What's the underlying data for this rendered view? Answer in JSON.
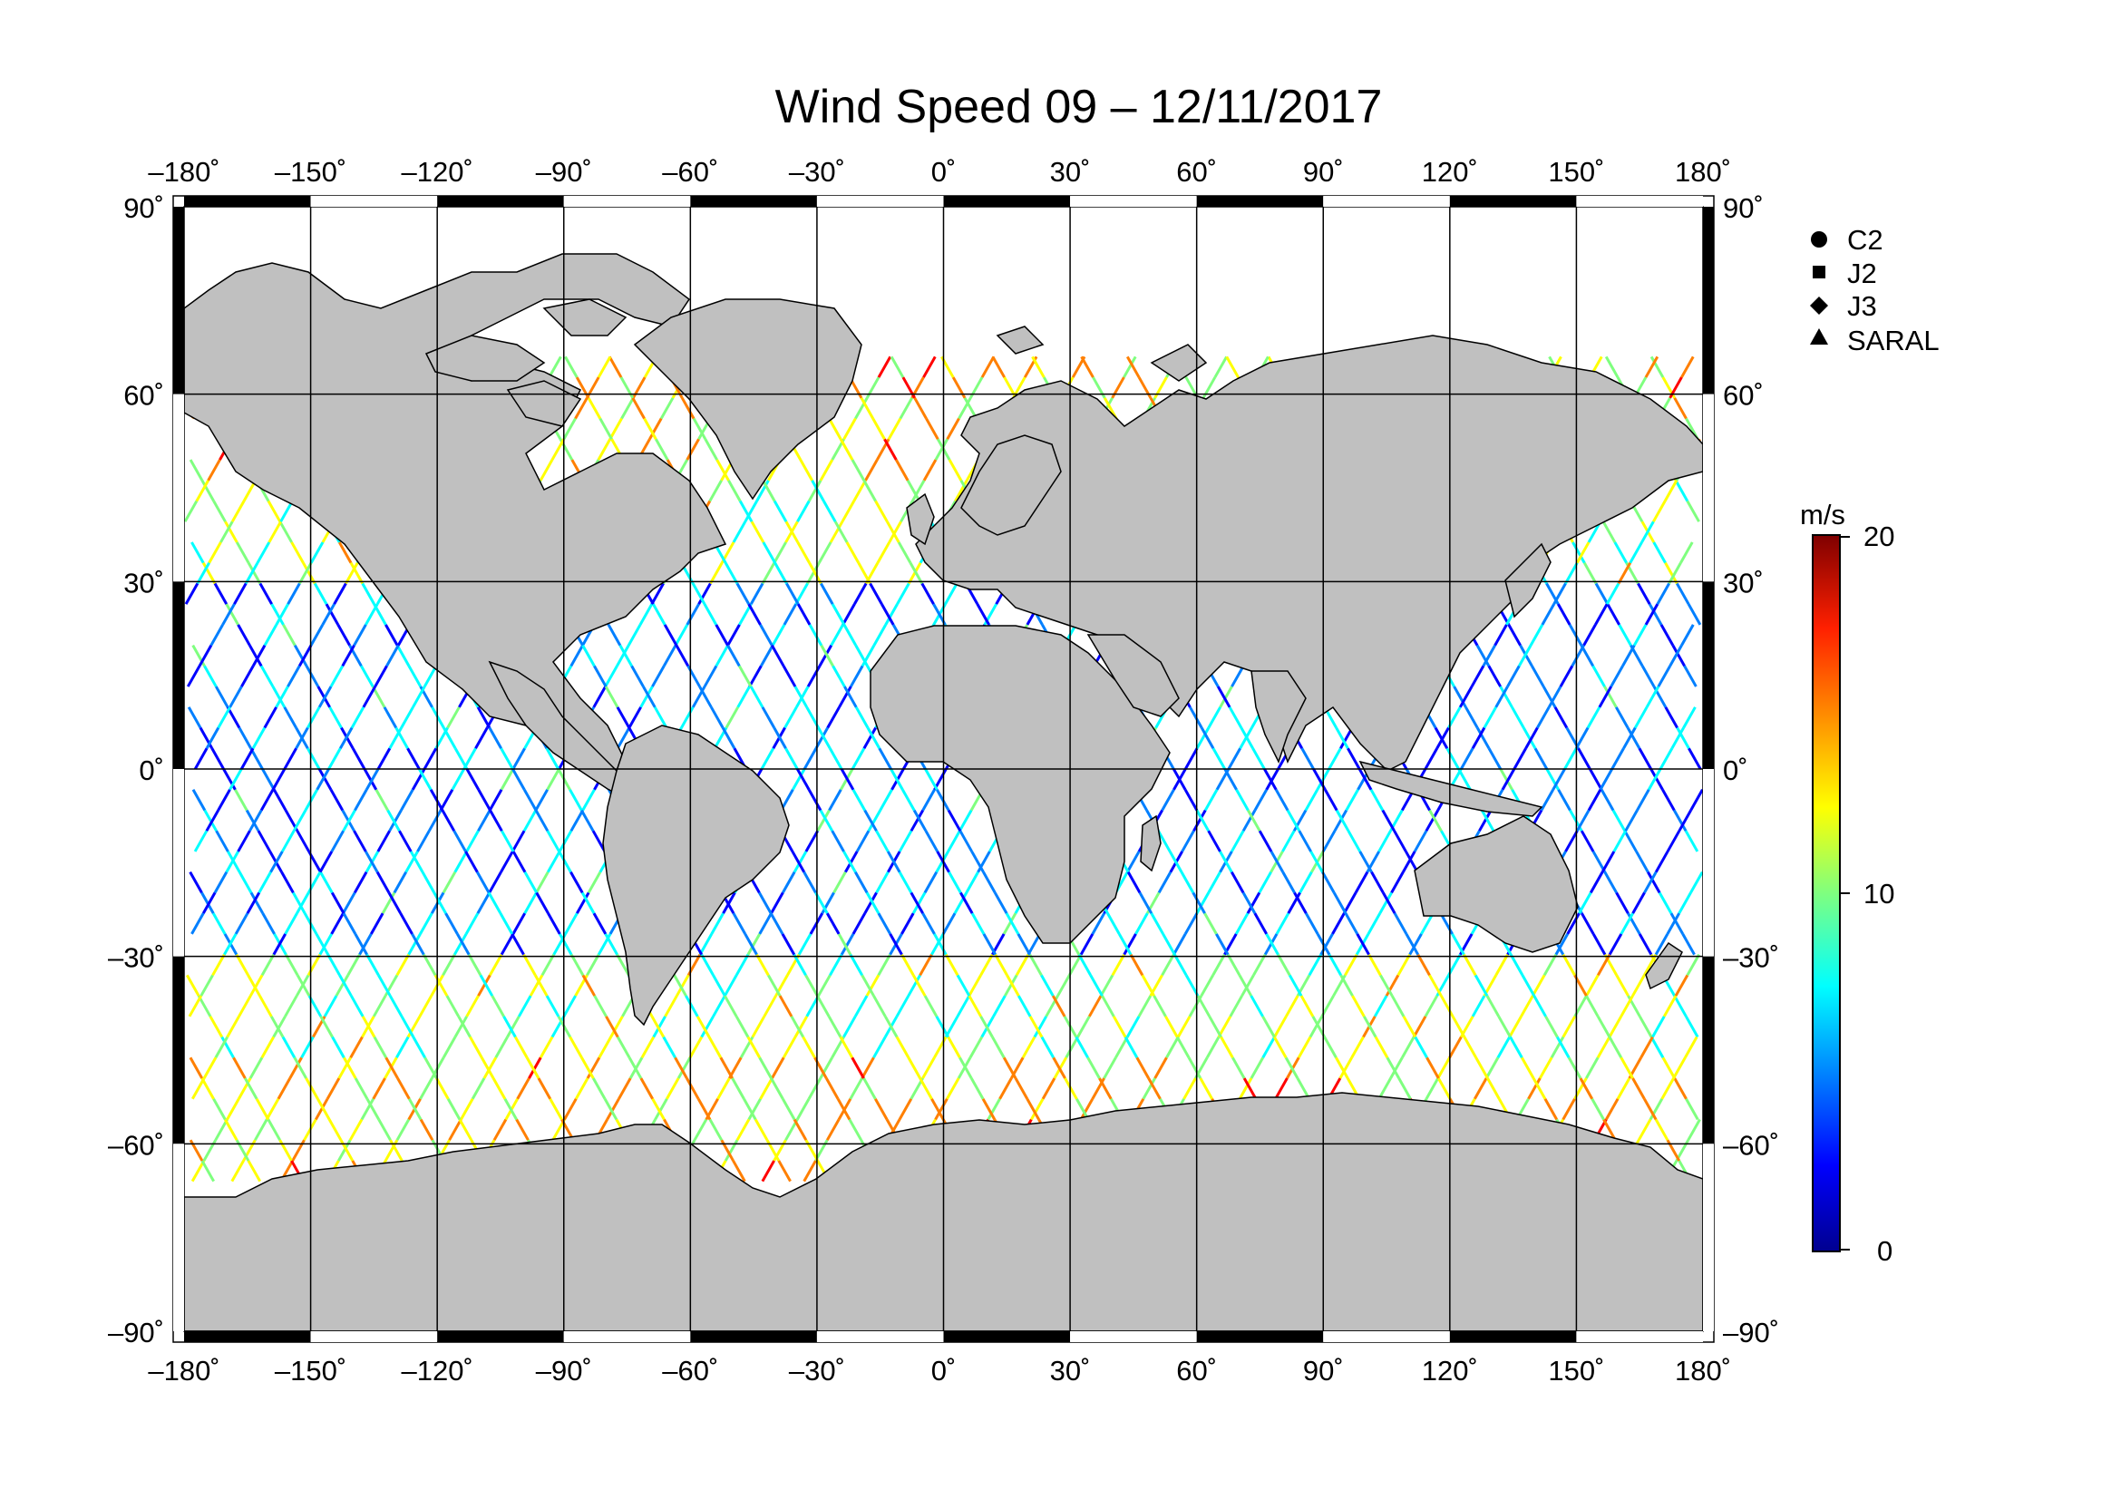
{
  "title": "Wind Speed 09 – 12/11/2017",
  "lon_ticks": [
    "–180˚",
    "–150˚",
    "–120˚",
    "–90˚",
    "–60˚",
    "–30˚",
    "0˚",
    "30˚",
    "60˚",
    "90˚",
    "120˚",
    "150˚",
    "180˚"
  ],
  "lat_ticks": [
    "90˚",
    "60˚",
    "30˚",
    "0˚",
    "–30˚",
    "–60˚",
    "–90˚"
  ],
  "legend": {
    "entries": [
      {
        "label": "C2",
        "symbol": "circle"
      },
      {
        "label": "J2",
        "symbol": "square"
      },
      {
        "label": "J3",
        "symbol": "diamond"
      },
      {
        "label": "SARAL",
        "symbol": "triangle"
      }
    ]
  },
  "colorbar": {
    "unit": "m/s",
    "min": 0,
    "max": 20,
    "tick_labels": [
      "20",
      "10",
      "0"
    ],
    "colors": [
      "#00008f",
      "#0000ff",
      "#007fff",
      "#00ffff",
      "#7fff7f",
      "#ffff00",
      "#ff7f00",
      "#ff0000",
      "#7f0000"
    ]
  },
  "map": {
    "land_color": "#c0c0c0",
    "ocean_color": "#ffffff",
    "projection": "equirectangular",
    "lon_range": [
      -180,
      180
    ],
    "lat_range": [
      -90,
      90
    ],
    "grid_spacing_deg": 30
  }
}
